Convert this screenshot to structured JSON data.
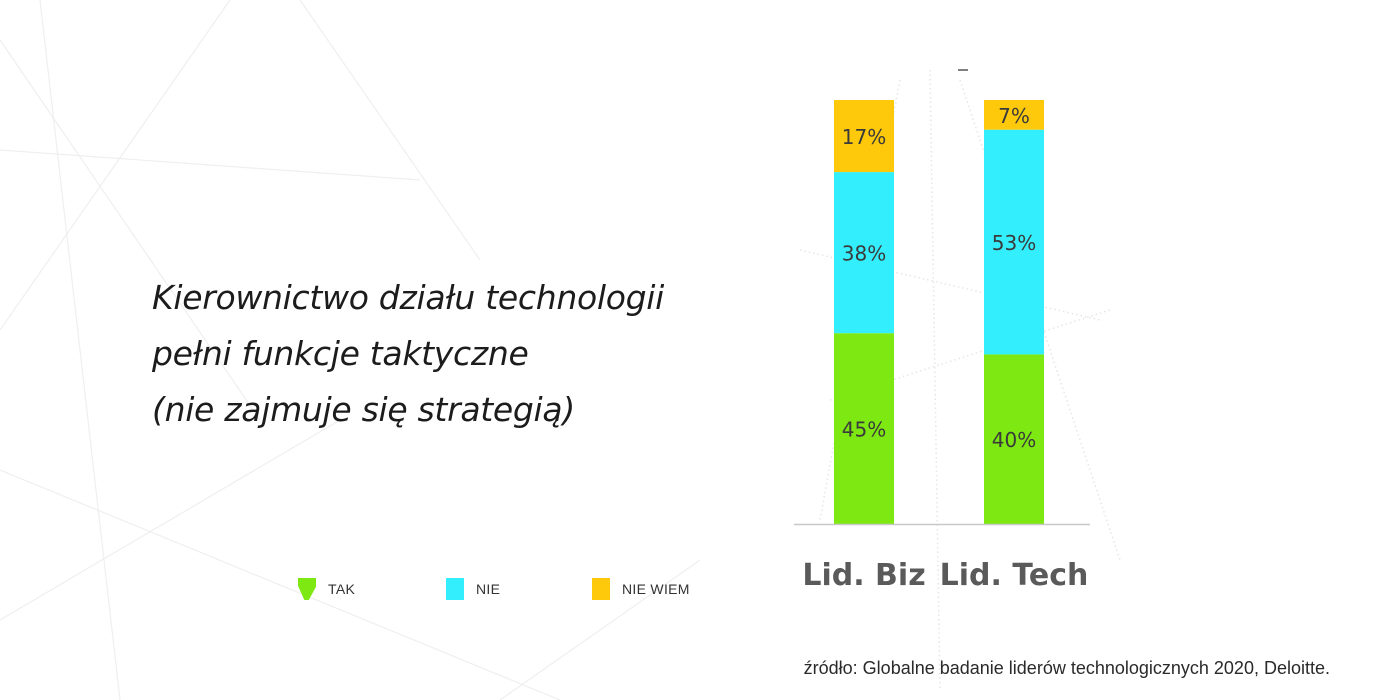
{
  "title_lines": [
    "Kierownictwo działu technologii",
    "pełni funkcje taktyczne",
    "(nie zajmuje się strategią)"
  ],
  "legend": [
    {
      "label": "TAK",
      "color": "#7ee812"
    },
    {
      "label": "NIE",
      "color": "#33eefc"
    },
    {
      "label": "NIE WIEM",
      "color": "#fdc90a"
    }
  ],
  "source": "źródło: Globalne badanie liderów technologicznych 2020, Deloitte.",
  "chart_data": {
    "type": "bar",
    "stacked": true,
    "categories": [
      "Lid. Biz",
      "Lid. Tech"
    ],
    "series": [
      {
        "name": "TAK",
        "color": "#7ee812",
        "values": [
          45,
          40
        ],
        "labels": [
          "45%",
          "40%"
        ]
      },
      {
        "name": "NIE",
        "color": "#33eefc",
        "values": [
          38,
          53
        ],
        "labels": [
          "38%",
          "53%"
        ]
      },
      {
        "name": "NIE WIEM",
        "color": "#fdc90a",
        "values": [
          17,
          7
        ],
        "labels": [
          "17%",
          "7%"
        ]
      }
    ],
    "ylim": [
      0,
      100
    ],
    "grid": false,
    "legend_position": "bottom-left"
  }
}
